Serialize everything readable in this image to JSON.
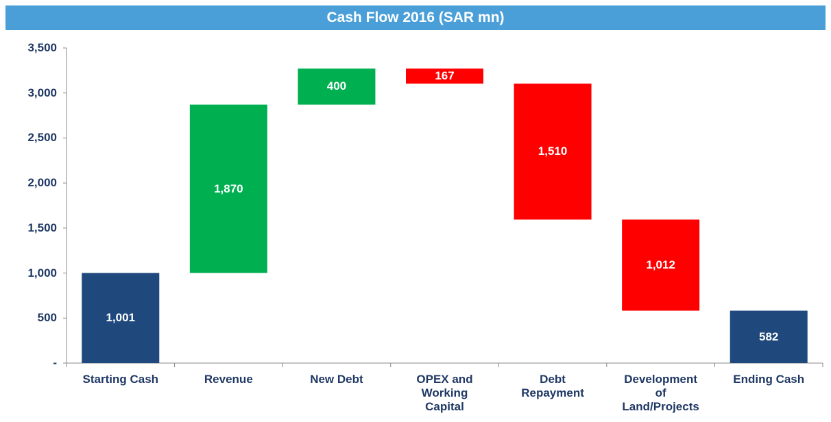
{
  "chart_data": {
    "type": "waterfall",
    "title": "Cash Flow 2016 (SAR mn)",
    "categories": [
      "Starting Cash",
      "Revenue",
      "New Debt",
      "OPEX and Working Capital",
      "Debt Repayment",
      "Development of Land/Projects",
      "Ending Cash"
    ],
    "measure": [
      "total",
      "relative",
      "relative",
      "relative",
      "relative",
      "relative",
      "total"
    ],
    "values": [
      1001,
      1870,
      400,
      -167,
      -1510,
      -1012,
      582
    ],
    "value_labels": [
      "1,001",
      "1,870",
      "400",
      "167",
      "1,510",
      "1,012",
      "582"
    ],
    "colors": {
      "total": "#1f497d",
      "increase": "#00b050",
      "decrease": "#ff0000"
    },
    "ylim": [
      0,
      3500
    ],
    "yticks": [
      {
        "value": 0,
        "label": "-"
      },
      500,
      {
        "value": 1000,
        "label": "1,000"
      },
      {
        "value": 1500,
        "label": "1,500"
      },
      {
        "value": 2000,
        "label": "2,000"
      },
      {
        "value": 2500,
        "label": "2,500"
      },
      {
        "value": 3000,
        "label": "3,000"
      },
      {
        "value": 3500,
        "label": "3,500"
      }
    ]
  }
}
